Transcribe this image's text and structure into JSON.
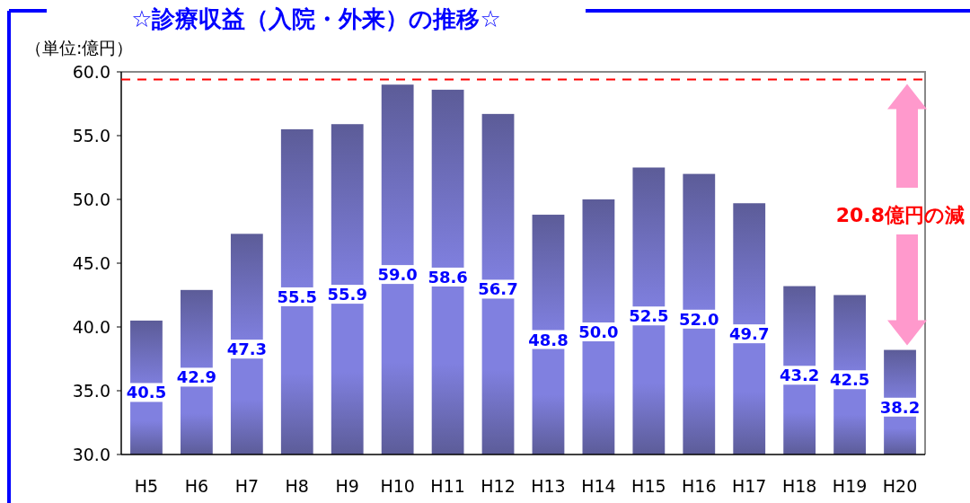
{
  "chart_data": {
    "type": "bar",
    "title": "☆診療収益（入院・外来）の推移☆",
    "ylabel": "（単位:億円）",
    "categories": [
      "H5",
      "H6",
      "H7",
      "H8",
      "H9",
      "H10",
      "H11",
      "H12",
      "H13",
      "H14",
      "H15",
      "H16",
      "H17",
      "H18",
      "H19",
      "H20"
    ],
    "values": [
      40.5,
      42.9,
      47.3,
      55.5,
      55.9,
      59.0,
      58.6,
      56.7,
      48.8,
      50.0,
      52.5,
      52.0,
      49.7,
      43.2,
      42.5,
      38.2
    ],
    "color": "#8080e0",
    "ylim": [
      30,
      60
    ],
    "yticks": [
      {
        "value": 30,
        "label": "30.0"
      },
      {
        "value": 35,
        "label": "35.0"
      },
      {
        "value": 40,
        "label": "40.0"
      },
      {
        "value": 45,
        "label": "45.0"
      },
      {
        "value": 50,
        "label": "50.0"
      },
      {
        "value": 55,
        "label": "55.0"
      },
      {
        "value": 60,
        "label": "60.0"
      }
    ],
    "value_labels": [
      "40.5",
      "42.9",
      "47.3",
      "55.5",
      "55.9",
      "59.0",
      "58.6",
      "56.7",
      "48.8",
      "50.0",
      "52.5",
      "52.0",
      "49.7",
      "43.2",
      "42.5",
      "38.2"
    ],
    "grid": false,
    "ref_lines": [
      {
        "axis": "y",
        "value": 59.4,
        "color": "#ff0000",
        "line_style": "dashed"
      }
    ],
    "annotations": [
      "20.8億円の減"
    ]
  }
}
